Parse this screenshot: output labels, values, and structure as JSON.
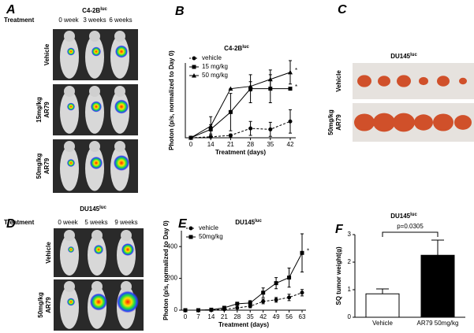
{
  "panels": {
    "A": {
      "label": "A",
      "title": "C4-2B",
      "title_sup": "luc",
      "treatment": "Treatment",
      "columns": [
        "0 week",
        "3 weeks",
        "6 weeks"
      ],
      "rows": [
        [
          "Vehicle"
        ],
        [
          "15mg/kg",
          "AR79"
        ],
        [
          "50mg/kg",
          "AR79"
        ]
      ]
    },
    "C": {
      "label": "C",
      "title": "DU145",
      "title_sup": "luc",
      "rows": [
        [
          "Vehicle"
        ],
        [
          "50mg/kg",
          "AR79"
        ]
      ]
    },
    "D": {
      "label": "D",
      "title": "DU145",
      "title_sup": "luc",
      "treatment": "Treatment",
      "columns": [
        "0 week",
        "5 weeks",
        "9 weeks"
      ],
      "rows": [
        [
          "Vehicle"
        ],
        [
          "50mg/kg",
          "AR79"
        ]
      ]
    }
  },
  "chart_data": [
    {
      "label": "B",
      "type": "line",
      "title": "C4-2B",
      "title_sup": "luc",
      "x_label": "Treatment (days)",
      "y_label": "Photon (p/s, normalized to Day 0)",
      "categories": [
        "0",
        "14",
        "21",
        "28",
        "35",
        "42"
      ],
      "ylim": [
        0,
        160
      ],
      "series": [
        {
          "name": "vehicle",
          "color": "#000000",
          "marker": "circle",
          "dashed": true,
          "values": [
            0,
            2,
            5,
            20,
            18,
            35
          ],
          "errors": [
            0,
            0,
            3,
            15,
            15,
            25
          ]
        },
        {
          "name": "15 mg/kg",
          "color": "#000000",
          "marker": "square",
          "dashed": false,
          "values": [
            0,
            18,
            55,
            105,
            105,
            105
          ],
          "errors": [
            0,
            10,
            40,
            30,
            30,
            0
          ]
        },
        {
          "name": "50 mg/kg",
          "color": "#000000",
          "marker": "triangle",
          "dashed": false,
          "values": [
            0,
            25,
            105,
            110,
            125,
            140
          ],
          "errors": [
            0,
            20,
            0,
            10,
            20,
            25
          ]
        }
      ],
      "annotations": [
        {
          "text": "*",
          "series": 2
        },
        {
          "text": "*",
          "series": 1
        }
      ]
    },
    {
      "label": "E",
      "type": "line",
      "title": "DU145",
      "title_sup": "luc",
      "x_label": "Treatment (days)",
      "y_label": "Photon (p/s, normalized to Day 0)",
      "categories": [
        "0",
        "7",
        "14",
        "21",
        "28",
        "35",
        "42",
        "49",
        "56",
        "63"
      ],
      "ylim": [
        0,
        500
      ],
      "yticks": [
        0,
        200,
        400
      ],
      "series": [
        {
          "name": "vehicle",
          "color": "#000000",
          "marker": "circle",
          "dashed": true,
          "values": [
            0,
            0,
            2,
            5,
            15,
            25,
            55,
            65,
            80,
            110
          ],
          "errors": [
            0,
            0,
            0,
            0,
            5,
            10,
            15,
            15,
            20,
            20
          ]
        },
        {
          "name": "50mg/kg",
          "color": "#000000",
          "marker": "square",
          "dashed": false,
          "values": [
            0,
            0,
            3,
            15,
            40,
            45,
            110,
            170,
            205,
            360
          ],
          "errors": [
            0,
            0,
            2,
            5,
            10,
            15,
            30,
            35,
            60,
            120
          ]
        }
      ],
      "annotations": [
        {
          "text": "*",
          "series": 1
        }
      ]
    },
    {
      "label": "F",
      "type": "bar",
      "title": "DU145",
      "title_sup": "luc",
      "y_label": "SQ tumor weight(g)",
      "categories": [
        "Vehicle",
        "AR79 50mg/kg"
      ],
      "values": [
        0.85,
        2.25
      ],
      "errors": [
        0.18,
        0.55
      ],
      "colors": [
        "#ffffff",
        "#000000"
      ],
      "ylim": [
        0,
        3
      ],
      "yticks": [
        0,
        1,
        2,
        3
      ],
      "annotation": "p=0.0305"
    }
  ]
}
